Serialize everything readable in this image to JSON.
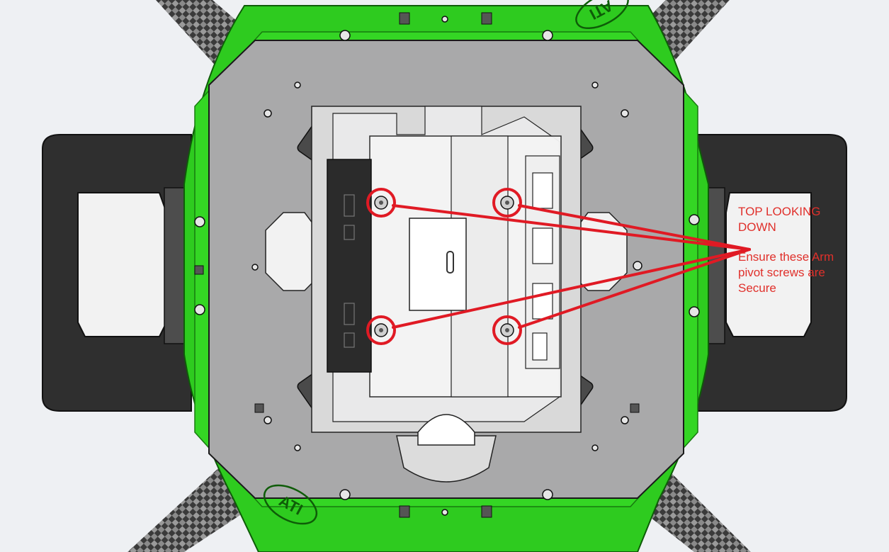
{
  "annotation": {
    "heading_line1": "TOP LOOKING",
    "heading_line2": "DOWN",
    "body_line1": "Ensure these Arm",
    "body_line2": "pivot screws are",
    "body_line3": "Secure"
  },
  "logo": {
    "text_top": "ATI",
    "text_bottom": "ATI"
  },
  "colors": {
    "frame_green": "#2ecb1f",
    "frame_outline": "#0e5c08",
    "deck_gray": "#a9a9aa",
    "callout_red": "#e01a24",
    "carbon_fiber": "#4a4a4a",
    "landing_gear": "#2f2f2f"
  },
  "marked_screw_count": 4
}
